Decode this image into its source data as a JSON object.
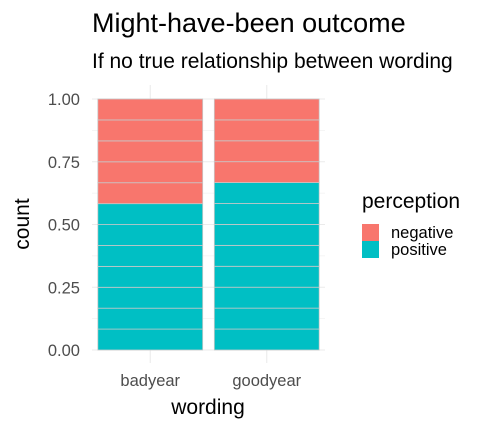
{
  "chart_data": {
    "type": "bar",
    "stacked": true,
    "proportional": true,
    "title": "Might-have-been outcome",
    "subtitle": "If no true relationship between wording",
    "xlabel": "wording",
    "ylabel": "count",
    "categories": [
      "badyear",
      "goodyear"
    ],
    "series": [
      {
        "name": "negative",
        "color": "#F8766D",
        "values": [
          0.417,
          0.333
        ],
        "units": [
          5,
          4
        ]
      },
      {
        "name": "positive",
        "color": "#00BFC4",
        "values": [
          0.583,
          0.667
        ],
        "units": [
          7,
          8
        ]
      }
    ],
    "ylim": [
      0,
      1
    ],
    "yticks": [
      "0.00",
      "0.25",
      "0.50",
      "0.75",
      "1.00"
    ],
    "legend": {
      "title": "perception",
      "position": "right"
    },
    "grid": true
  }
}
